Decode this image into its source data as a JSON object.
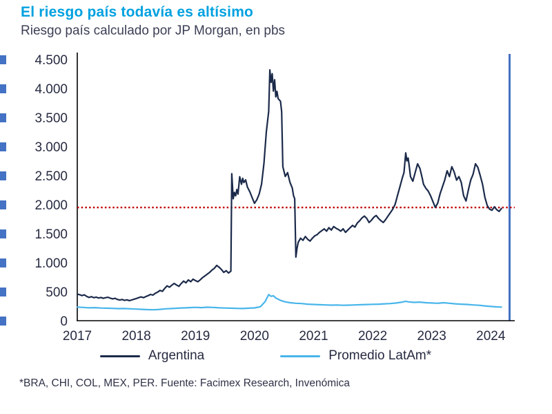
{
  "header": {
    "title": "El riesgo país todavía es altísimo",
    "subtitle": "Riesgo país calculado por JP Morgan, en pbs"
  },
  "footnote": "*BRA, CHI, COL, MEX, PER. Fuente: Facimex Research, Invenómica",
  "colors": {
    "title": "#00A1E0",
    "axis": "#000000",
    "plot_border_right": "#4472C4",
    "tick_text": "#262A40",
    "artifact": "#4472C4"
  },
  "chart_data": {
    "type": "line",
    "title": "El riesgo país todavía es altísimo",
    "subtitle": "Riesgo país calculado por JP Morgan, en pbs",
    "xlabel": "",
    "ylabel": "pbs",
    "grid": false,
    "legend_position": "bottom",
    "xlim": [
      2017,
      2024.3
    ],
    "ylim": [
      0,
      4500
    ],
    "x_ticks": [
      {
        "v": 2017,
        "label": "2017"
      },
      {
        "v": 2018,
        "label": "2018"
      },
      {
        "v": 2019,
        "label": "2019"
      },
      {
        "v": 2020,
        "label": "2020"
      },
      {
        "v": 2021,
        "label": "2021"
      },
      {
        "v": 2022,
        "label": "2022"
      },
      {
        "v": 2023,
        "label": "2023"
      },
      {
        "v": 2024,
        "label": "2024"
      }
    ],
    "y_ticks": [
      {
        "v": 0,
        "label": "0"
      },
      {
        "v": 500,
        "label": "500"
      },
      {
        "v": 1000,
        "label": "1.000"
      },
      {
        "v": 1500,
        "label": "1.500"
      },
      {
        "v": 2000,
        "label": "2.000"
      },
      {
        "v": 2500,
        "label": "2.500"
      },
      {
        "v": 3000,
        "label": "3.000"
      },
      {
        "v": 3500,
        "label": "3.500"
      },
      {
        "v": 4000,
        "label": "4.000"
      },
      {
        "v": 4500,
        "label": "4.500"
      }
    ],
    "reference_line": {
      "value": 1950,
      "color": "#C00000",
      "style": "dotted"
    },
    "series": [
      {
        "name": "Argentina",
        "color": "#1B2A4A",
        "points": [
          [
            2017.0,
            460
          ],
          [
            2017.04,
            448
          ],
          [
            2017.08,
            432
          ],
          [
            2017.12,
            445
          ],
          [
            2017.16,
            418
          ],
          [
            2017.2,
            400
          ],
          [
            2017.24,
            414
          ],
          [
            2017.28,
            396
          ],
          [
            2017.32,
            406
          ],
          [
            2017.36,
            390
          ],
          [
            2017.4,
            400
          ],
          [
            2017.44,
            386
          ],
          [
            2017.48,
            396
          ],
          [
            2017.52,
            404
          ],
          [
            2017.56,
            388
          ],
          [
            2017.6,
            376
          ],
          [
            2017.64,
            386
          ],
          [
            2017.68,
            366
          ],
          [
            2017.72,
            356
          ],
          [
            2017.76,
            366
          ],
          [
            2017.8,
            350
          ],
          [
            2017.84,
            360
          ],
          [
            2017.88,
            346
          ],
          [
            2017.92,
            356
          ],
          [
            2017.96,
            370
          ],
          [
            2018.0,
            382
          ],
          [
            2018.04,
            396
          ],
          [
            2018.08,
            410
          ],
          [
            2018.12,
            396
          ],
          [
            2018.16,
            416
          ],
          [
            2018.2,
            432
          ],
          [
            2018.24,
            452
          ],
          [
            2018.28,
            440
          ],
          [
            2018.32,
            472
          ],
          [
            2018.36,
            492
          ],
          [
            2018.4,
            522
          ],
          [
            2018.44,
            506
          ],
          [
            2018.48,
            556
          ],
          [
            2018.52,
            600
          ],
          [
            2018.56,
            576
          ],
          [
            2018.6,
            612
          ],
          [
            2018.64,
            642
          ],
          [
            2018.68,
            616
          ],
          [
            2018.72,
            592
          ],
          [
            2018.76,
            642
          ],
          [
            2018.8,
            682
          ],
          [
            2018.84,
            652
          ],
          [
            2018.88,
            702
          ],
          [
            2018.92,
            672
          ],
          [
            2018.96,
            716
          ],
          [
            2019.0,
            692
          ],
          [
            2019.04,
            672
          ],
          [
            2019.08,
            702
          ],
          [
            2019.12,
            742
          ],
          [
            2019.16,
            772
          ],
          [
            2019.2,
            802
          ],
          [
            2019.24,
            832
          ],
          [
            2019.28,
            872
          ],
          [
            2019.32,
            902
          ],
          [
            2019.36,
            952
          ],
          [
            2019.4,
            922
          ],
          [
            2019.44,
            882
          ],
          [
            2019.48,
            832
          ],
          [
            2019.52,
            862
          ],
          [
            2019.56,
            822
          ],
          [
            2019.6,
            852
          ],
          [
            2019.615,
            2532
          ],
          [
            2019.64,
            2100
          ],
          [
            2019.66,
            2210
          ],
          [
            2019.68,
            2150
          ],
          [
            2019.7,
            2260
          ],
          [
            2019.72,
            2180
          ],
          [
            2019.75,
            2480
          ],
          [
            2019.78,
            2350
          ],
          [
            2019.8,
            2452
          ],
          [
            2019.82,
            2380
          ],
          [
            2019.85,
            2425
          ],
          [
            2019.88,
            2300
          ],
          [
            2019.92,
            2222
          ],
          [
            2019.96,
            2120
          ],
          [
            2020.0,
            2022
          ],
          [
            2020.04,
            2085
          ],
          [
            2020.08,
            2185
          ],
          [
            2020.12,
            2355
          ],
          [
            2020.16,
            2705
          ],
          [
            2020.2,
            3255
          ],
          [
            2020.24,
            3605
          ],
          [
            2020.26,
            4320
          ],
          [
            2020.28,
            4105
          ],
          [
            2020.3,
            4255
          ],
          [
            2020.32,
            3955
          ],
          [
            2020.34,
            4150
          ],
          [
            2020.36,
            3855
          ],
          [
            2020.38,
            3950
          ],
          [
            2020.4,
            3825
          ],
          [
            2020.44,
            3780
          ],
          [
            2020.46,
            3600
          ],
          [
            2020.48,
            2655
          ],
          [
            2020.52,
            2485
          ],
          [
            2020.56,
            2550
          ],
          [
            2020.6,
            2385
          ],
          [
            2020.64,
            2285
          ],
          [
            2020.66,
            2155
          ],
          [
            2020.68,
            2100
          ],
          [
            2020.7,
            1095
          ],
          [
            2020.72,
            1250
          ],
          [
            2020.74,
            1350
          ],
          [
            2020.78,
            1420
          ],
          [
            2020.82,
            1385
          ],
          [
            2020.86,
            1450
          ],
          [
            2020.9,
            1402
          ],
          [
            2020.94,
            1372
          ],
          [
            2020.98,
            1422
          ],
          [
            2021.02,
            1462
          ],
          [
            2021.06,
            1482
          ],
          [
            2021.1,
            1522
          ],
          [
            2021.14,
            1552
          ],
          [
            2021.18,
            1582
          ],
          [
            2021.22,
            1542
          ],
          [
            2021.26,
            1602
          ],
          [
            2021.3,
            1562
          ],
          [
            2021.34,
            1622
          ],
          [
            2021.38,
            1592
          ],
          [
            2021.42,
            1572
          ],
          [
            2021.46,
            1542
          ],
          [
            2021.5,
            1582
          ],
          [
            2021.54,
            1522
          ],
          [
            2021.58,
            1562
          ],
          [
            2021.62,
            1602
          ],
          [
            2021.66,
            1642
          ],
          [
            2021.7,
            1612
          ],
          [
            2021.74,
            1682
          ],
          [
            2021.78,
            1722
          ],
          [
            2021.82,
            1772
          ],
          [
            2021.86,
            1802
          ],
          [
            2021.9,
            1762
          ],
          [
            2021.94,
            1692
          ],
          [
            2021.98,
            1732
          ],
          [
            2022.02,
            1782
          ],
          [
            2022.06,
            1812
          ],
          [
            2022.1,
            1762
          ],
          [
            2022.14,
            1722
          ],
          [
            2022.18,
            1692
          ],
          [
            2022.22,
            1742
          ],
          [
            2022.26,
            1802
          ],
          [
            2022.3,
            1862
          ],
          [
            2022.34,
            1922
          ],
          [
            2022.38,
            2002
          ],
          [
            2022.42,
            2152
          ],
          [
            2022.46,
            2302
          ],
          [
            2022.5,
            2452
          ],
          [
            2022.53,
            2552
          ],
          [
            2022.56,
            2890
          ],
          [
            2022.58,
            2752
          ],
          [
            2022.6,
            2802
          ],
          [
            2022.62,
            2652
          ],
          [
            2022.64,
            2482
          ],
          [
            2022.68,
            2402
          ],
          [
            2022.72,
            2552
          ],
          [
            2022.76,
            2702
          ],
          [
            2022.8,
            2622
          ],
          [
            2022.84,
            2452
          ],
          [
            2022.86,
            2352
          ],
          [
            2022.9,
            2282
          ],
          [
            2022.94,
            2232
          ],
          [
            2022.98,
            2152
          ],
          [
            2023.02,
            2052
          ],
          [
            2023.06,
            1952
          ],
          [
            2023.1,
            2022
          ],
          [
            2023.14,
            2182
          ],
          [
            2023.18,
            2302
          ],
          [
            2023.22,
            2422
          ],
          [
            2023.26,
            2582
          ],
          [
            2023.3,
            2482
          ],
          [
            2023.34,
            2652
          ],
          [
            2023.38,
            2562
          ],
          [
            2023.42,
            2422
          ],
          [
            2023.46,
            2482
          ],
          [
            2023.5,
            2382
          ],
          [
            2023.54,
            2152
          ],
          [
            2023.58,
            2062
          ],
          [
            2023.62,
            2252
          ],
          [
            2023.66,
            2422
          ],
          [
            2023.7,
            2522
          ],
          [
            2023.74,
            2702
          ],
          [
            2023.78,
            2642
          ],
          [
            2023.82,
            2502
          ],
          [
            2023.86,
            2352
          ],
          [
            2023.9,
            2122
          ],
          [
            2023.94,
            1982
          ],
          [
            2023.98,
            1922
          ],
          [
            2024.02,
            1902
          ],
          [
            2024.06,
            1962
          ],
          [
            2024.1,
            1912
          ],
          [
            2024.14,
            1882
          ],
          [
            2024.18,
            1932
          ]
        ]
      },
      {
        "name": "Promedio LatAm*",
        "color": "#47B5EA",
        "points": [
          [
            2017.0,
            235
          ],
          [
            2017.1,
            228
          ],
          [
            2017.2,
            222
          ],
          [
            2017.3,
            225
          ],
          [
            2017.4,
            218
          ],
          [
            2017.5,
            215
          ],
          [
            2017.6,
            212
          ],
          [
            2017.7,
            208
          ],
          [
            2017.8,
            210
          ],
          [
            2017.9,
            205
          ],
          [
            2018.0,
            200
          ],
          [
            2018.1,
            195
          ],
          [
            2018.2,
            190
          ],
          [
            2018.3,
            188
          ],
          [
            2018.4,
            195
          ],
          [
            2018.5,
            205
          ],
          [
            2018.6,
            210
          ],
          [
            2018.7,
            215
          ],
          [
            2018.8,
            220
          ],
          [
            2018.9,
            225
          ],
          [
            2019.0,
            230
          ],
          [
            2019.1,
            225
          ],
          [
            2019.2,
            232
          ],
          [
            2019.3,
            228
          ],
          [
            2019.4,
            222
          ],
          [
            2019.5,
            218
          ],
          [
            2019.6,
            215
          ],
          [
            2019.7,
            212
          ],
          [
            2019.8,
            210
          ],
          [
            2019.9,
            215
          ],
          [
            2020.0,
            220
          ],
          [
            2020.1,
            240
          ],
          [
            2020.18,
            330
          ],
          [
            2020.24,
            450
          ],
          [
            2020.28,
            420
          ],
          [
            2020.32,
            430
          ],
          [
            2020.36,
            390
          ],
          [
            2020.4,
            370
          ],
          [
            2020.44,
            350
          ],
          [
            2020.5,
            330
          ],
          [
            2020.6,
            310
          ],
          [
            2020.7,
            300
          ],
          [
            2020.8,
            295
          ],
          [
            2020.9,
            285
          ],
          [
            2021.0,
            280
          ],
          [
            2021.1,
            275
          ],
          [
            2021.2,
            272
          ],
          [
            2021.3,
            268
          ],
          [
            2021.4,
            270
          ],
          [
            2021.5,
            265
          ],
          [
            2021.6,
            268
          ],
          [
            2021.7,
            272
          ],
          [
            2021.8,
            275
          ],
          [
            2021.9,
            278
          ],
          [
            2022.0,
            282
          ],
          [
            2022.1,
            285
          ],
          [
            2022.2,
            290
          ],
          [
            2022.3,
            295
          ],
          [
            2022.4,
            305
          ],
          [
            2022.5,
            320
          ],
          [
            2022.56,
            335
          ],
          [
            2022.6,
            325
          ],
          [
            2022.7,
            315
          ],
          [
            2022.8,
            320
          ],
          [
            2022.9,
            310
          ],
          [
            2023.0,
            305
          ],
          [
            2023.1,
            300
          ],
          [
            2023.2,
            310
          ],
          [
            2023.3,
            300
          ],
          [
            2023.4,
            290
          ],
          [
            2023.5,
            285
          ],
          [
            2023.6,
            280
          ],
          [
            2023.7,
            272
          ],
          [
            2023.8,
            265
          ],
          [
            2023.9,
            255
          ],
          [
            2024.0,
            245
          ],
          [
            2024.1,
            238
          ],
          [
            2024.18,
            235
          ]
        ]
      }
    ]
  }
}
